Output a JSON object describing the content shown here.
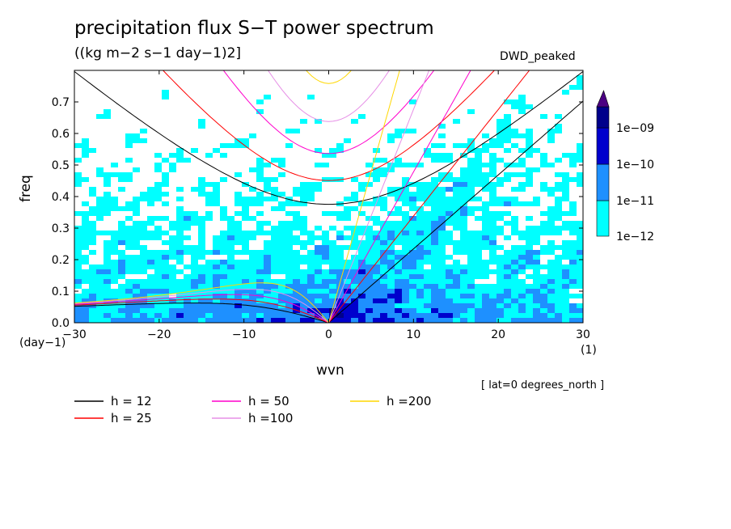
{
  "title": "precipitation flux S−T power spectrum",
  "units": "((kg m−2 s−1 day−1)2]",
  "model": "DWD_peaked",
  "note": "[ lat=0 degrees_north ]",
  "colors": {
    "c0": "#00ffff",
    "c1": "#1e90ff",
    "c2": "#0000cd",
    "c3": "#00008b",
    "c4": "#4b0082",
    "white": "#ffffff"
  },
  "chart_data": {
    "type": "heatmap",
    "title": "precipitation flux S−T power spectrum",
    "xlabel": "wvn",
    "ylabel": "freq",
    "xunit": "(1)",
    "yunit": "(day−1)",
    "xlim": [
      -30,
      30
    ],
    "ylim": [
      0,
      0.8
    ],
    "xticks": [
      -30,
      -20,
      -10,
      0,
      10,
      20,
      30
    ],
    "yticks": [
      0.0,
      0.1,
      0.2,
      0.3,
      0.4,
      0.5,
      0.6,
      0.7
    ],
    "xtick_labels": [
      "−30",
      "−20",
      "−10",
      "0",
      "10",
      "20",
      "30"
    ],
    "ytick_labels": [
      "0.0",
      "0.1",
      "0.2",
      "0.3",
      "0.4",
      "0.5",
      "0.6",
      "0.7"
    ],
    "colorbar": {
      "levels": [
        "1e−12",
        "1e−11",
        "1e−10",
        "1e−09"
      ],
      "extend": "max"
    },
    "dispersion_curves": [
      {
        "name": "h = 12",
        "color": "#000000",
        "h": 12
      },
      {
        "name": "h = 25",
        "color": "#ff0000",
        "h": 25
      },
      {
        "name": "h = 50",
        "color": "#ff00cc",
        "h": 50
      },
      {
        "name": "h =100",
        "color": "#e68fe6",
        "h": 100
      },
      {
        "name": "h =200",
        "color": "#ffd700",
        "h": 200
      }
    ]
  }
}
